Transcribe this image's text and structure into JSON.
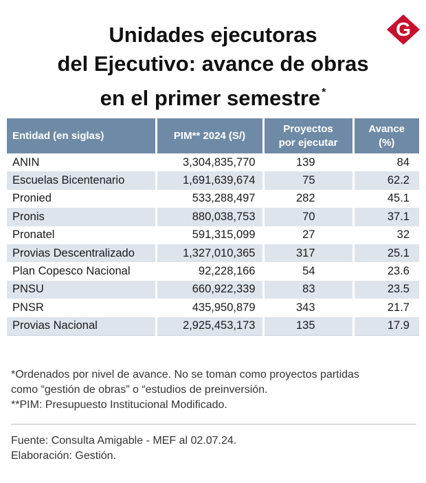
{
  "brand": {
    "logo_letter": "G",
    "color": "#c8102e"
  },
  "title": {
    "line1": "Unidades ejecutoras",
    "line2": "del Ejecutivo: avance de obras",
    "line3": "en el primer semestre",
    "mark": "*"
  },
  "chart_data": {
    "type": "table",
    "columns": [
      "Entidad (en siglas)",
      "PIM** 2024 (S/)",
      "Proyectos por ejecutar",
      "Avance (%)"
    ],
    "header_lines": {
      "proyectos": [
        "Proyectos",
        "por ejecutar"
      ],
      "avance": [
        "Avance",
        "(%)"
      ]
    },
    "rows": [
      {
        "entidad": "ANIN",
        "pim": "3,304,835,770",
        "proyectos": "139",
        "avance": "84"
      },
      {
        "entidad": "Escuelas Bicentenario",
        "pim": "1,691,639,674",
        "proyectos": "75",
        "avance": "62.2"
      },
      {
        "entidad": "Pronied",
        "pim": "533,288,497",
        "proyectos": "282",
        "avance": "45.1"
      },
      {
        "entidad": "Pronis",
        "pim": "880,038,753",
        "proyectos": "70",
        "avance": "37.1"
      },
      {
        "entidad": "Pronatel",
        "pim": "591,315,099",
        "proyectos": "27",
        "avance": "32"
      },
      {
        "entidad": "Provias Descentralizado",
        "pim": "1,327,010,365",
        "proyectos": "317",
        "avance": "25.1"
      },
      {
        "entidad": "Plan Copesco Nacional",
        "pim": "92,228,166",
        "proyectos": "54",
        "avance": "23.6"
      },
      {
        "entidad": "PNSU",
        "pim": "660,922,339",
        "proyectos": "83",
        "avance": "23.5"
      },
      {
        "entidad": "PNSR",
        "pim": "435,950,879",
        "proyectos": "343",
        "avance": "21.7"
      },
      {
        "entidad": "Provias Nacional",
        "pim": "2,925,453,173",
        "proyectos": "135",
        "avance": "17.9"
      }
    ],
    "colors": {
      "header": "#6f8aa6",
      "stripe": "#dde4ec"
    }
  },
  "notes": {
    "line1": "*Ordenados por nivel de avance. No se toman como proyectos partidas",
    "line2": "como “gestión de obras” o “estudios de preinversión.",
    "line3": "**PIM: Presupuesto Institucional Modificado."
  },
  "source": {
    "line1": "Fuente: Consulta Amigable - MEF al 02.07.24.",
    "line2": "Elaboración: Gestión."
  }
}
